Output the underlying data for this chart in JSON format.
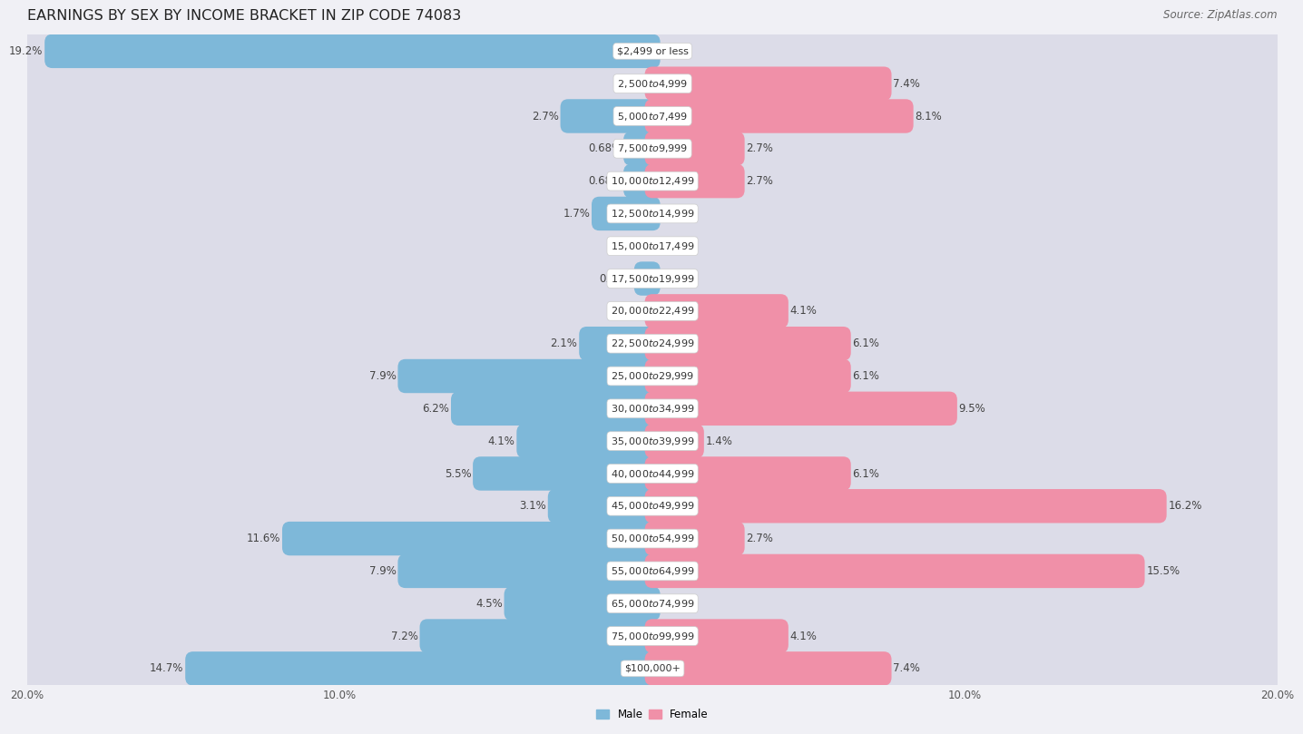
{
  "title": "EARNINGS BY SEX BY INCOME BRACKET IN ZIP CODE 74083",
  "source": "Source: ZipAtlas.com",
  "categories": [
    "$2,499 or less",
    "$2,500 to $4,999",
    "$5,000 to $7,499",
    "$7,500 to $9,999",
    "$10,000 to $12,499",
    "$12,500 to $14,999",
    "$15,000 to $17,499",
    "$17,500 to $19,999",
    "$20,000 to $22,499",
    "$22,500 to $24,999",
    "$25,000 to $29,999",
    "$30,000 to $34,999",
    "$35,000 to $39,999",
    "$40,000 to $44,999",
    "$45,000 to $49,999",
    "$50,000 to $54,999",
    "$55,000 to $64,999",
    "$65,000 to $74,999",
    "$75,000 to $99,999",
    "$100,000+"
  ],
  "male_values": [
    19.2,
    0.0,
    2.7,
    0.68,
    0.68,
    1.7,
    0.0,
    0.34,
    0.0,
    2.1,
    7.9,
    6.2,
    4.1,
    5.5,
    3.1,
    11.6,
    7.9,
    4.5,
    7.2,
    14.7
  ],
  "female_values": [
    0.0,
    7.4,
    8.1,
    2.7,
    2.7,
    0.0,
    0.0,
    0.0,
    4.1,
    6.1,
    6.1,
    9.5,
    1.4,
    6.1,
    16.2,
    2.7,
    15.5,
    0.0,
    4.1,
    7.4
  ],
  "male_color": "#7eb8d9",
  "female_color": "#f090a8",
  "male_label": "Male",
  "female_label": "Female",
  "xlim": 20.0,
  "row_color_even": "#e8e8ec",
  "row_color_odd": "#f4f4f8",
  "bar_bg_color": "#dcdce8",
  "title_fontsize": 11.5,
  "source_fontsize": 8.5,
  "label_fontsize": 8.5,
  "cat_fontsize": 8.0,
  "tick_fontsize": 8.5,
  "bar_height": 0.55
}
